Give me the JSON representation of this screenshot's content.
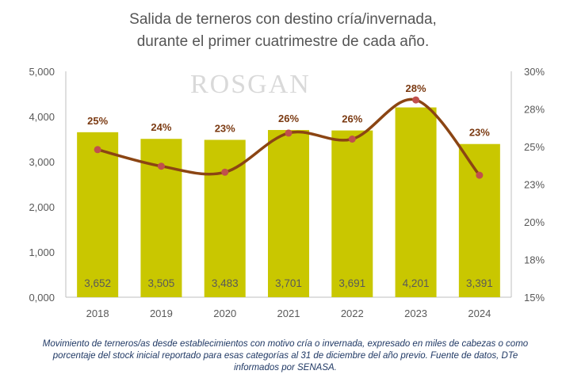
{
  "title": {
    "line1": "Salida de terneros con destino cría/invernada,",
    "line2": "durante el primer cuatrimestre de cada año."
  },
  "watermark": "ROSGAN",
  "footnote": "Movimiento de terneros/as desde establecimientos con motivo cría o invernada, expresado en miles de cabezas o como porcentaje del stock inicial reportado para esas categorías al 31 de diciembre del año previo. Fuente de datos, DTe informados por SENASA.",
  "chart_data": {
    "type": "bar",
    "categories": [
      "2018",
      "2019",
      "2020",
      "2021",
      "2022",
      "2023",
      "2024"
    ],
    "values": [
      3652,
      3505,
      3483,
      3701,
      3691,
      4201,
      3391
    ],
    "value_labels": [
      "3,652",
      "3,505",
      "3,483",
      "3,701",
      "3,691",
      "4,201",
      "3,391"
    ],
    "line_series": {
      "values": [
        24.8,
        23.7,
        23.3,
        25.9,
        25.5,
        28.1,
        23.1
      ],
      "labels": [
        "25%",
        "24%",
        "23%",
        "26%",
        "26%",
        "28%",
        "23%"
      ]
    },
    "ylim": [
      0,
      5000
    ],
    "y_ticks": [
      "0,000",
      "1,000",
      "2,000",
      "3,000",
      "4,000",
      "5,000"
    ],
    "y2lim": [
      15,
      30
    ],
    "y2_ticks": [
      "15%",
      "18%",
      "20%",
      "23%",
      "25%",
      "28%",
      "30%"
    ],
    "bar_color": "#c9c700",
    "line_color": "#8b4513",
    "marker_color": "#c0504d",
    "grid": false
  }
}
